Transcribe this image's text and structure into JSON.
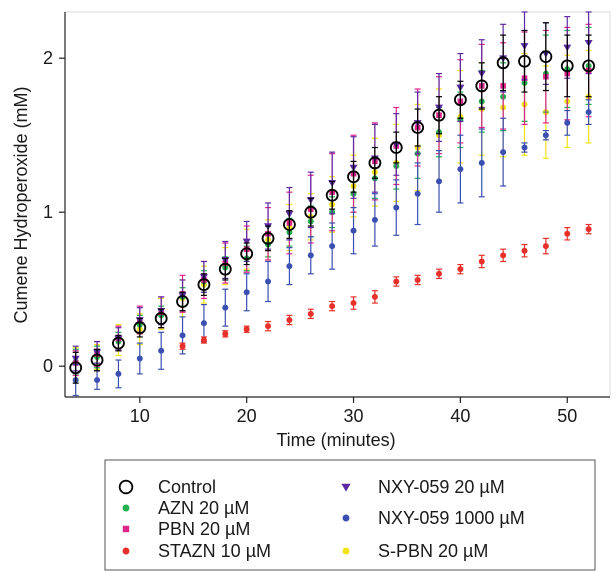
{
  "chart_data": {
    "type": "scatter",
    "xlabel": "Time (minutes)",
    "ylabel": "Cumene Hydroperoxide (mM)",
    "xlim": [
      3,
      54
    ],
    "ylim": [
      -0.2,
      2.3
    ],
    "x_ticks": [
      10,
      20,
      30,
      40,
      50
    ],
    "y_ticks": [
      0,
      1,
      2
    ],
    "legend_position": "bottom",
    "series": [
      {
        "name": "Control",
        "marker": "open-circle",
        "color": "#000000",
        "x": [
          4,
          6,
          8,
          10,
          12,
          14,
          16,
          18,
          20,
          22,
          24,
          26,
          28,
          30,
          32,
          34,
          36,
          38,
          40,
          42,
          44,
          46,
          48,
          50,
          52
        ],
        "y": [
          -0.01,
          0.04,
          0.15,
          0.25,
          0.31,
          0.42,
          0.53,
          0.63,
          0.73,
          0.83,
          0.92,
          1.0,
          1.11,
          1.23,
          1.32,
          1.42,
          1.55,
          1.63,
          1.73,
          1.82,
          1.97,
          1.98,
          2.01,
          1.95,
          1.95
        ],
        "err": [
          0.1,
          0.07,
          0.05,
          0.06,
          0.06,
          0.06,
          0.07,
          0.07,
          0.07,
          0.08,
          0.09,
          0.09,
          0.09,
          0.1,
          0.1,
          0.1,
          0.12,
          0.12,
          0.12,
          0.15,
          0.18,
          0.2,
          0.22,
          0.2,
          0.2
        ]
      },
      {
        "name": "AZN 20 µM",
        "marker": "dot",
        "color": "#22b14c",
        "x": [
          4,
          6,
          8,
          10,
          12,
          14,
          16,
          18,
          20,
          22,
          24,
          26,
          28,
          30,
          32,
          34,
          36,
          38,
          40,
          42,
          44,
          46,
          48,
          50,
          52
        ],
        "y": [
          0.03,
          0.06,
          0.16,
          0.27,
          0.33,
          0.45,
          0.55,
          0.64,
          0.7,
          0.79,
          0.87,
          0.94,
          1.0,
          1.12,
          1.22,
          1.3,
          1.38,
          1.52,
          1.6,
          1.72,
          1.75,
          1.84,
          1.9,
          1.93,
          1.95
        ],
        "err": [
          0.08,
          0.07,
          0.06,
          0.06,
          0.06,
          0.06,
          0.07,
          0.07,
          0.08,
          0.08,
          0.09,
          0.1,
          0.1,
          0.12,
          0.13,
          0.15,
          0.16,
          0.16,
          0.18,
          0.2,
          0.22,
          0.25,
          0.25,
          0.25,
          0.25
        ]
      },
      {
        "name": "PBN 20 µM",
        "marker": "square",
        "color": "#e0258a",
        "x": [
          4,
          6,
          8,
          10,
          12,
          14,
          16,
          18,
          20,
          22,
          24,
          26,
          28,
          30,
          32,
          34,
          36,
          38,
          40,
          42,
          44,
          46,
          48,
          50,
          52
        ],
        "y": [
          0.02,
          0.08,
          0.18,
          0.3,
          0.35,
          0.47,
          0.56,
          0.67,
          0.76,
          0.86,
          0.93,
          1.02,
          1.13,
          1.25,
          1.33,
          1.43,
          1.55,
          1.63,
          1.72,
          1.82,
          1.82,
          1.87,
          1.88,
          1.9,
          1.92
        ],
        "err": [
          0.08,
          0.08,
          0.08,
          0.09,
          0.1,
          0.12,
          0.12,
          0.13,
          0.15,
          0.17,
          0.2,
          0.22,
          0.25,
          0.25,
          0.25,
          0.25,
          0.25,
          0.25,
          0.27,
          0.27,
          0.28,
          0.3,
          0.3,
          0.3,
          0.3
        ]
      },
      {
        "name": "STAZN 10 µM",
        "marker": "dot",
        "color": "#e8302a",
        "x": [
          14,
          16,
          18,
          20,
          22,
          24,
          26,
          28,
          30,
          32,
          34,
          36,
          38,
          40,
          42,
          44,
          46,
          48,
          50,
          52
        ],
        "y": [
          0.13,
          0.17,
          0.21,
          0.24,
          0.26,
          0.3,
          0.34,
          0.39,
          0.41,
          0.45,
          0.55,
          0.56,
          0.6,
          0.63,
          0.68,
          0.72,
          0.75,
          0.78,
          0.86,
          0.89
        ],
        "err": [
          0.02,
          0.02,
          0.02,
          0.02,
          0.03,
          0.03,
          0.03,
          0.03,
          0.04,
          0.04,
          0.03,
          0.03,
          0.03,
          0.03,
          0.04,
          0.04,
          0.04,
          0.05,
          0.04,
          0.03
        ]
      },
      {
        "name": "NXY-059 20 µM",
        "marker": "triangle-down",
        "color": "#5b2aa0",
        "x": [
          4,
          6,
          8,
          10,
          12,
          14,
          16,
          18,
          20,
          22,
          24,
          26,
          28,
          30,
          32,
          34,
          36,
          38,
          40,
          42,
          44,
          46,
          48,
          50,
          52
        ],
        "y": [
          0.05,
          0.09,
          0.18,
          0.3,
          0.36,
          0.46,
          0.58,
          0.69,
          0.81,
          0.91,
          0.99,
          1.08,
          1.19,
          1.29,
          1.35,
          1.44,
          1.58,
          1.68,
          1.81,
          1.9,
          2.0,
          2.08,
          2.03,
          2.07,
          2.1
        ],
        "err": [
          0.08,
          0.07,
          0.07,
          0.08,
          0.09,
          0.1,
          0.1,
          0.12,
          0.13,
          0.15,
          0.17,
          0.18,
          0.2,
          0.2,
          0.22,
          0.2,
          0.2,
          0.22,
          0.22,
          0.22,
          0.22,
          0.22,
          0.2,
          0.2,
          0.2
        ]
      },
      {
        "name": "NXY-059 1000 µM",
        "marker": "dot",
        "color": "#3b4fb0",
        "x": [
          4,
          6,
          8,
          10,
          12,
          14,
          16,
          18,
          20,
          22,
          24,
          26,
          28,
          30,
          32,
          34,
          36,
          38,
          40,
          42,
          44,
          46,
          48,
          50,
          52
        ],
        "y": [
          -0.09,
          -0.09,
          -0.05,
          0.05,
          0.1,
          0.2,
          0.28,
          0.38,
          0.48,
          0.55,
          0.65,
          0.72,
          0.78,
          0.88,
          0.95,
          1.03,
          1.12,
          1.2,
          1.28,
          1.32,
          1.39,
          1.42,
          1.5,
          1.58,
          1.65
        ],
        "err": [
          0.1,
          0.06,
          0.09,
          0.1,
          0.12,
          0.12,
          0.12,
          0.12,
          0.12,
          0.13,
          0.12,
          0.12,
          0.15,
          0.15,
          0.17,
          0.18,
          0.2,
          0.2,
          0.22,
          0.22,
          0.22,
          0.03,
          0.03,
          0.08,
          0.08
        ]
      },
      {
        "name": "S-PBN 20 µM",
        "marker": "dot",
        "color": "#f3e313",
        "x": [
          4,
          6,
          8,
          10,
          12,
          14,
          16,
          18,
          20,
          22,
          24,
          26,
          28,
          30,
          32,
          34,
          36,
          38,
          40,
          42,
          44,
          46,
          48,
          50,
          52
        ],
        "y": [
          0.02,
          0.06,
          0.17,
          0.24,
          0.34,
          0.44,
          0.53,
          0.65,
          0.76,
          0.82,
          0.9,
          0.97,
          1.05,
          1.17,
          1.26,
          1.32,
          1.42,
          1.5,
          1.62,
          1.67,
          1.68,
          1.7,
          1.65,
          1.72,
          1.75
        ],
        "err": [
          0.1,
          0.08,
          0.1,
          0.1,
          0.1,
          0.12,
          0.12,
          0.12,
          0.13,
          0.13,
          0.15,
          0.15,
          0.18,
          0.2,
          0.22,
          0.25,
          0.28,
          0.3,
          0.3,
          0.3,
          0.32,
          0.33,
          0.3,
          0.3,
          0.3
        ]
      }
    ]
  }
}
